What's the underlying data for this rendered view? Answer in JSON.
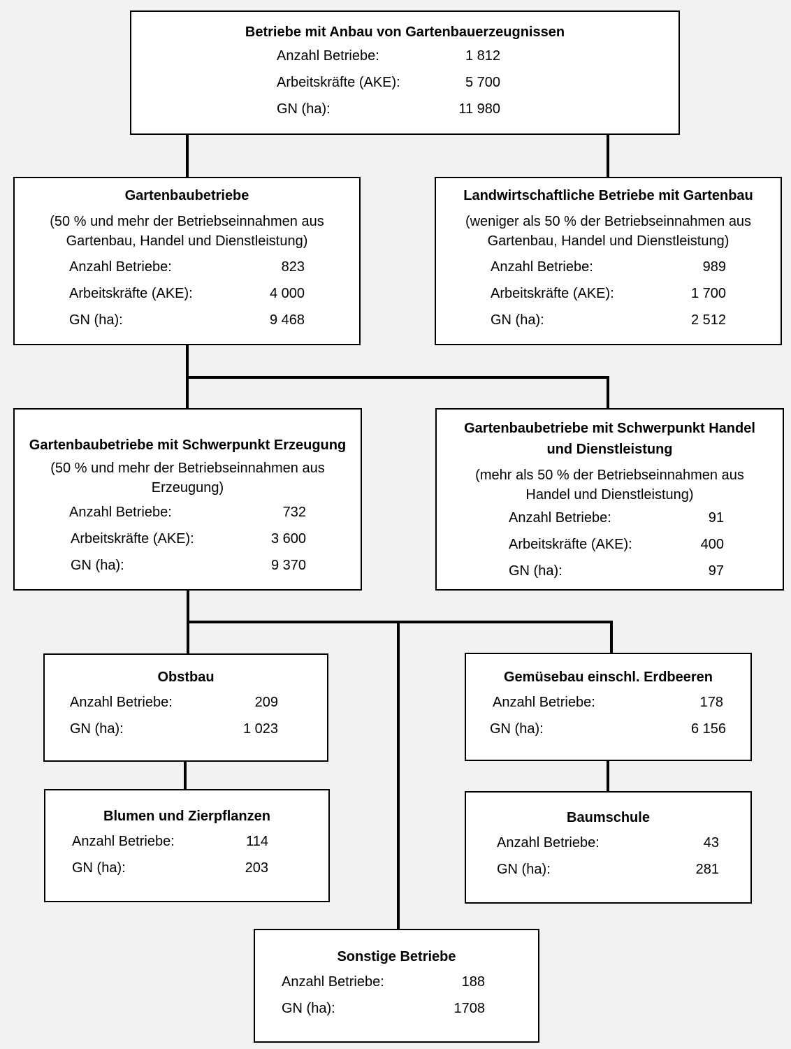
{
  "boxes": {
    "top": {
      "title": "Betriebe mit Anbau von Gartenbauerzeugnissen",
      "rows": [
        {
          "label": "Anzahl Betriebe:",
          "value": "1 812"
        },
        {
          "label": "Arbeitskräfte (AKE):",
          "value": "5 700"
        },
        {
          "label": "GN (ha):",
          "value": "11 980"
        }
      ]
    },
    "gartenbau": {
      "title": "Gartenbaubetriebe",
      "desc_line1": "(50 % und mehr der Betriebseinnahmen aus",
      "desc_line2": "Gartenbau, Handel und Dienstleistung)",
      "rows": [
        {
          "label": "Anzahl Betriebe:",
          "value": "823"
        },
        {
          "label": "Arbeitskräfte (AKE):",
          "value": "4 000"
        },
        {
          "label": "GN (ha):",
          "value": "9 468"
        }
      ]
    },
    "landwirtschaft": {
      "title": "Landwirtschaftliche Betriebe mit Gartenbau",
      "desc_line1": "(weniger als 50 % der Betriebseinnahmen aus",
      "desc_line2": "Gartenbau, Handel und Dienstleistung)",
      "rows": [
        {
          "label": "Anzahl Betriebe:",
          "value": "989"
        },
        {
          "label": "Arbeitskräfte (AKE):",
          "value": "1 700"
        },
        {
          "label": "GN (ha):",
          "value": "2 512"
        }
      ]
    },
    "erzeugung": {
      "title": "Gartenbaubetriebe mit Schwerpunkt Erzeugung",
      "desc_line1": "(50 % und mehr der Betriebseinnahmen aus",
      "desc_line2": "Erzeugung)",
      "rows": [
        {
          "label": "Anzahl Betriebe:",
          "value": "732"
        },
        {
          "label": "Arbeitskräfte (AKE):",
          "value": "3 600"
        },
        {
          "label": "GN (ha):",
          "value": "9 370"
        }
      ]
    },
    "handel": {
      "title_line1": "Gartenbaubetriebe mit Schwerpunkt Handel",
      "title_line2": "und Dienstleistung",
      "desc_line1": "(mehr als 50 % der Betriebseinnahmen aus",
      "desc_line2": "Handel und Dienstleistung)",
      "rows": [
        {
          "label": "Anzahl Betriebe:",
          "value": "91"
        },
        {
          "label": "Arbeitskräfte (AKE):",
          "value": "400"
        },
        {
          "label": "GN (ha):",
          "value": "97"
        }
      ]
    },
    "obstbau": {
      "title": "Obstbau",
      "rows": [
        {
          "label": "Anzahl Betriebe:",
          "value": "209"
        },
        {
          "label": "GN (ha):",
          "value": "1 023"
        }
      ]
    },
    "gemuese": {
      "title": "Gemüsebau einschl. Erdbeeren",
      "rows": [
        {
          "label": "Anzahl Betriebe:",
          "value": "178"
        },
        {
          "label": "GN (ha):",
          "value": "6 156"
        }
      ]
    },
    "blumen": {
      "title": "Blumen und Zierpflanzen",
      "rows": [
        {
          "label": "Anzahl Betriebe:",
          "value": "114"
        },
        {
          "label": "GN (ha):",
          "value": "203"
        }
      ]
    },
    "baumschule": {
      "title": "Baumschule",
      "rows": [
        {
          "label": "Anzahl Betriebe:",
          "value": "43"
        },
        {
          "label": "GN (ha):",
          "value": "281"
        }
      ]
    },
    "sonstige": {
      "title": "Sonstige Betriebe",
      "rows": [
        {
          "label": "Anzahl Betriebe:",
          "value": "188"
        },
        {
          "label": "GN (ha):",
          "value": "1708"
        }
      ]
    }
  }
}
